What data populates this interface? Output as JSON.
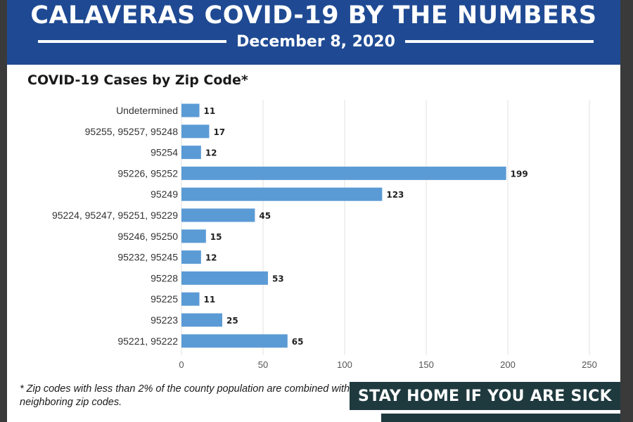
{
  "header": {
    "title": "CALAVERAS COVID-19 BY THE NUMBERS",
    "date": "December 8, 2020"
  },
  "chart_data": {
    "type": "bar",
    "orientation": "horizontal",
    "title": "COVID-19 Cases by Zip Code*",
    "categories": [
      "Undetermined",
      "95255, 95257, 95248",
      "95254",
      "95226, 95252",
      "95249",
      "95224, 95247, 95251, 95229",
      "95246, 95250",
      "95232, 95245",
      "95228",
      "95225",
      "95223",
      "95221, 95222"
    ],
    "values": [
      11,
      17,
      12,
      199,
      123,
      45,
      15,
      12,
      53,
      11,
      25,
      65
    ],
    "xlim": [
      0,
      250
    ],
    "xticks": [
      0,
      50,
      100,
      150,
      200,
      250
    ],
    "grid": true,
    "bar_color": "#5b9bd5",
    "data_labels": true
  },
  "footnote": "* Zip codes with less than 2% of the county population are combined with neighboring zip codes.",
  "cta": {
    "label": "STAY HOME IF YOU ARE SICK"
  },
  "colors": {
    "banner": "#1f4a93",
    "cta": "#1f3a3f",
    "bar": "#5b9bd5"
  }
}
